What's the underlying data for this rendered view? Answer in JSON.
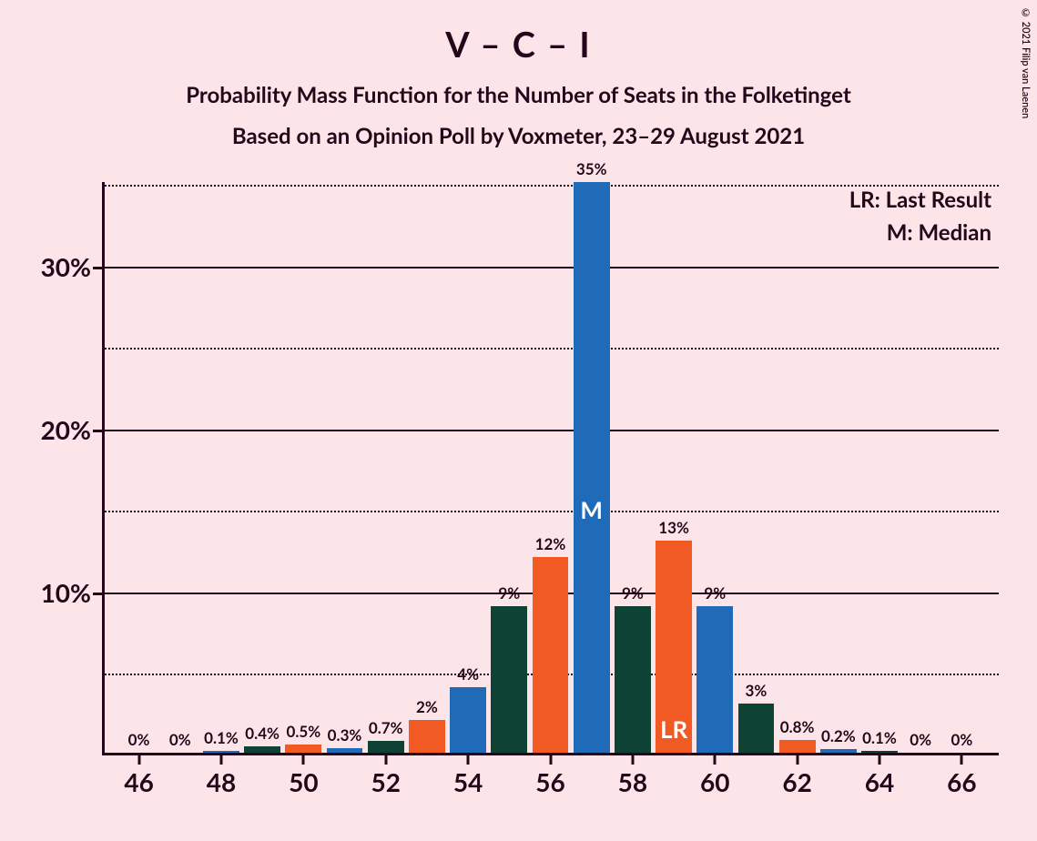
{
  "title": "V – C – I",
  "title_fontsize": 38,
  "subtitle1": "Probability Mass Function for the Number of Seats in the Folketinget",
  "subtitle2": "Based on an Opinion Poll by Voxmeter, 23–29 August 2021",
  "subtitle_fontsize": 24,
  "copyright": "© 2021 Filip van Laenen",
  "legend": {
    "lr": "LR: Last Result",
    "m": "M: Median"
  },
  "chart": {
    "type": "bar",
    "background_color": "#fce5e8",
    "axis_color": "#25061a",
    "text_color": "#25061a",
    "y": {
      "max": 35,
      "major_ticks": [
        10,
        20,
        30
      ],
      "minor_ticks": [
        5,
        15,
        25,
        35
      ],
      "label_suffix": "%"
    },
    "x": {
      "min": 46,
      "max": 66,
      "ticks": [
        46,
        48,
        50,
        52,
        54,
        56,
        58,
        60,
        62,
        64,
        66
      ]
    },
    "bar_width_ratio": 0.88,
    "bars": [
      {
        "x": 46,
        "value": 0,
        "label": "0%",
        "color": "#0d4234",
        "inner": null
      },
      {
        "x": 47,
        "value": 0,
        "label": "0%",
        "color": "#f15a22",
        "inner": null
      },
      {
        "x": 48,
        "value": 0.1,
        "label": "0.1%",
        "color": "#1f6bb7",
        "inner": null
      },
      {
        "x": 49,
        "value": 0.4,
        "label": "0.4%",
        "color": "#0d4234",
        "inner": null
      },
      {
        "x": 50,
        "value": 0.5,
        "label": "0.5%",
        "color": "#f15a22",
        "inner": null
      },
      {
        "x": 51,
        "value": 0.3,
        "label": "0.3%",
        "color": "#1f6bb7",
        "inner": null
      },
      {
        "x": 52,
        "value": 0.7,
        "label": "0.7%",
        "color": "#0d4234",
        "inner": null
      },
      {
        "x": 53,
        "value": 2,
        "label": "2%",
        "color": "#f15a22",
        "inner": null
      },
      {
        "x": 54,
        "value": 4,
        "label": "4%",
        "color": "#1f6bb7",
        "inner": null
      },
      {
        "x": 55,
        "value": 9,
        "label": "9%",
        "color": "#0d4234",
        "inner": null
      },
      {
        "x": 56,
        "value": 12,
        "label": "12%",
        "color": "#f15a22",
        "inner": null
      },
      {
        "x": 57,
        "value": 35,
        "label": "35%",
        "color": "#1f6bb7",
        "inner": "M"
      },
      {
        "x": 58,
        "value": 9,
        "label": "9%",
        "color": "#0d4234",
        "inner": null
      },
      {
        "x": 59,
        "value": 13,
        "label": "13%",
        "color": "#f15a22",
        "inner": "LR"
      },
      {
        "x": 60,
        "value": 9,
        "label": "9%",
        "color": "#1f6bb7",
        "inner": null
      },
      {
        "x": 61,
        "value": 3,
        "label": "3%",
        "color": "#0d4234",
        "inner": null
      },
      {
        "x": 62,
        "value": 0.8,
        "label": "0.8%",
        "color": "#f15a22",
        "inner": null
      },
      {
        "x": 63,
        "value": 0.2,
        "label": "0.2%",
        "color": "#1f6bb7",
        "inner": null
      },
      {
        "x": 64,
        "value": 0.1,
        "label": "0.1%",
        "color": "#0d4234",
        "inner": null
      },
      {
        "x": 65,
        "value": 0,
        "label": "0%",
        "color": "#f15a22",
        "inner": null
      },
      {
        "x": 66,
        "value": 0,
        "label": "0%",
        "color": "#1f6bb7",
        "inner": null
      }
    ]
  }
}
